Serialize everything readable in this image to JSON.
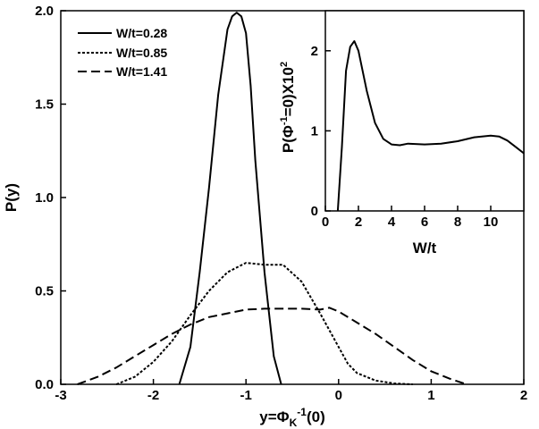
{
  "chart_data": [
    {
      "type": "line",
      "title": "",
      "xlabel_main": "y=Φ",
      "xlabel_sub": "K",
      "xlabel_sup": "-1",
      "xlabel_tail": "(0)",
      "ylabel": "P(y)",
      "xlim": [
        -3,
        2
      ],
      "ylim": [
        0,
        2
      ],
      "xticks": [
        -3,
        -2,
        -1,
        0,
        1,
        2
      ],
      "yticks": [
        0.0,
        0.5,
        1.0,
        1.5,
        2.0
      ],
      "xtick_labels": [
        "-3",
        "-2",
        "-1",
        "0",
        "1",
        "2"
      ],
      "ytick_labels": [
        "0.0",
        "0.5",
        "1.0",
        "1.5",
        "2.0"
      ],
      "legend_position": "top-left",
      "series": [
        {
          "name": "W/t=0.28",
          "style": "solid",
          "x": [
            -1.72,
            -1.6,
            -1.5,
            -1.4,
            -1.3,
            -1.2,
            -1.15,
            -1.1,
            -1.05,
            -1.0,
            -0.95,
            -0.9,
            -0.8,
            -0.7,
            -0.62
          ],
          "y": [
            0.0,
            0.2,
            0.6,
            1.05,
            1.55,
            1.9,
            1.97,
            1.99,
            1.97,
            1.88,
            1.6,
            1.2,
            0.6,
            0.15,
            0.0
          ]
        },
        {
          "name": "W/t=0.85",
          "style": "dotted",
          "x": [
            -2.4,
            -2.2,
            -2.0,
            -1.8,
            -1.6,
            -1.4,
            -1.2,
            -1.0,
            -0.8,
            -0.6,
            -0.4,
            -0.2,
            0.0,
            0.1,
            0.2,
            0.4,
            0.6,
            0.8
          ],
          "y": [
            0.0,
            0.04,
            0.12,
            0.23,
            0.37,
            0.5,
            0.6,
            0.65,
            0.64,
            0.64,
            0.55,
            0.38,
            0.2,
            0.11,
            0.06,
            0.02,
            0.005,
            0.0
          ]
        },
        {
          "name": "W/t=1.41",
          "style": "dashed",
          "x": [
            -2.82,
            -2.6,
            -2.4,
            -2.2,
            -2.0,
            -1.8,
            -1.6,
            -1.4,
            -1.2,
            -1.0,
            -0.8,
            -0.6,
            -0.4,
            -0.2,
            -0.1,
            0.0,
            0.2,
            0.4,
            0.6,
            0.8,
            1.0,
            1.2,
            1.38
          ],
          "y": [
            0.0,
            0.04,
            0.09,
            0.15,
            0.21,
            0.27,
            0.32,
            0.36,
            0.38,
            0.4,
            0.405,
            0.405,
            0.405,
            0.4,
            0.41,
            0.39,
            0.33,
            0.27,
            0.2,
            0.13,
            0.07,
            0.03,
            0.0
          ]
        }
      ]
    },
    {
      "type": "line",
      "title": "",
      "xlabel": "W/t",
      "ylabel_pre": "P(Φ",
      "ylabel_sup1": "-1",
      "ylabel_mid": "=0)X10",
      "ylabel_sup2": "2",
      "xlim": [
        0,
        12
      ],
      "ylim": [
        0,
        2.5
      ],
      "xticks": [
        0,
        2,
        4,
        6,
        8,
        10
      ],
      "yticks": [
        0,
        1,
        2
      ],
      "xtick_labels": [
        "0",
        "2",
        "4",
        "6",
        "8",
        "10"
      ],
      "ytick_labels": [
        "0",
        "1",
        "2"
      ],
      "series": [
        {
          "name": "",
          "style": "solid",
          "x": [
            0.75,
            1.0,
            1.25,
            1.5,
            1.75,
            2.0,
            2.5,
            3.0,
            3.5,
            4.0,
            4.5,
            5.0,
            6.0,
            7.0,
            8.0,
            9.0,
            10.0,
            10.5,
            11.0,
            11.5,
            12.0
          ],
          "y": [
            0.0,
            0.8,
            1.75,
            2.05,
            2.12,
            2.0,
            1.5,
            1.1,
            0.9,
            0.83,
            0.82,
            0.84,
            0.83,
            0.84,
            0.87,
            0.92,
            0.94,
            0.93,
            0.88,
            0.8,
            0.72
          ]
        }
      ]
    }
  ]
}
